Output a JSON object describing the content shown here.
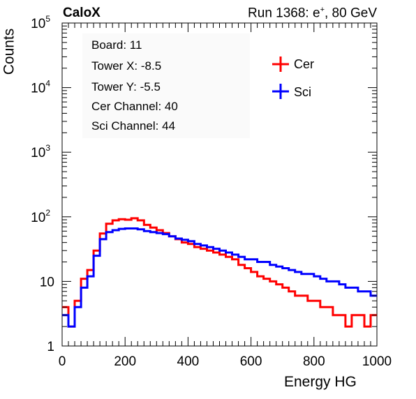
{
  "header": {
    "left_title": "CaloX",
    "right_title_prefix": "Run 1368: e",
    "right_title_sup": "+",
    "right_title_suffix": ", 80 GeV"
  },
  "info_box": {
    "lines": [
      "Board: 11",
      "Tower X: -8.5",
      "Tower Y: -5.5",
      "Cer Channel: 40",
      "Sci Channel: 44"
    ]
  },
  "chart_data": {
    "type": "line",
    "style": "step-histogram",
    "xlabel": "Energy HG",
    "ylabel": "Counts",
    "xlim": [
      0,
      1000
    ],
    "ylim": [
      1,
      100000
    ],
    "y_scale": "log",
    "x_ticks": [
      0,
      200,
      400,
      600,
      800,
      1000
    ],
    "y_tick_labels": [
      {
        "value": 1,
        "base": "1",
        "exp": ""
      },
      {
        "value": 10,
        "base": "10",
        "exp": ""
      },
      {
        "value": 100,
        "base": "10",
        "exp": "2"
      },
      {
        "value": 1000,
        "base": "10",
        "exp": "3"
      },
      {
        "value": 10000,
        "base": "10",
        "exp": "4"
      },
      {
        "value": 100000,
        "base": "10",
        "exp": "5"
      }
    ],
    "legend_position": "top-right",
    "grid": false,
    "bin_width": 20,
    "x": [
      0,
      20,
      40,
      60,
      80,
      100,
      120,
      140,
      160,
      180,
      200,
      220,
      240,
      260,
      280,
      300,
      320,
      340,
      360,
      380,
      400,
      420,
      440,
      460,
      480,
      500,
      520,
      540,
      560,
      580,
      600,
      620,
      640,
      660,
      680,
      700,
      720,
      740,
      760,
      780,
      800,
      820,
      840,
      860,
      880,
      900,
      920,
      940,
      960,
      980
    ],
    "series": [
      {
        "name": "Cer",
        "color": "#ff0000",
        "values": [
          4,
          2,
          5,
          11,
          15,
          30,
          55,
          78,
          88,
          92,
          90,
          95,
          88,
          75,
          68,
          62,
          56,
          50,
          45,
          40,
          38,
          34,
          32,
          30,
          28,
          26,
          24,
          22,
          18,
          16,
          14,
          12,
          11,
          10,
          9,
          8,
          7,
          6,
          6,
          5,
          5,
          4,
          4,
          3,
          3,
          2,
          3,
          3,
          2,
          3
        ]
      },
      {
        "name": "Sci",
        "color": "#0000ff",
        "values": [
          3,
          2,
          4,
          8,
          12,
          25,
          45,
          58,
          62,
          65,
          66,
          66,
          64,
          60,
          58,
          56,
          54,
          50,
          46,
          44,
          42,
          38,
          36,
          34,
          32,
          30,
          28,
          26,
          24,
          22,
          22,
          20,
          20,
          18,
          17,
          16,
          15,
          14,
          13,
          13,
          12,
          11,
          10,
          10,
          9,
          8,
          8,
          7,
          7,
          6
        ]
      }
    ]
  },
  "colors": {
    "cer": "#ff0000",
    "sci": "#0000ff",
    "frame": "#000000"
  }
}
